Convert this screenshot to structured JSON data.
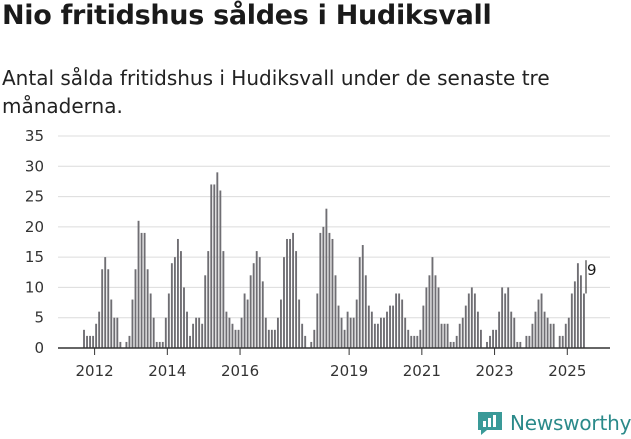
{
  "headline": "Nio fritidshus såldes i Hudiksvall",
  "subtitle": "Antal sålda fritidshus i Hudiksvall under de senaste tre månaderna.",
  "brand": {
    "name": "Newsworthy",
    "icon": "newsworthy-logo-icon",
    "color": "#2b8a8a"
  },
  "colors": {
    "bar": "#6f6e73",
    "highlight": "#1b9a94",
    "grid": "#dcdcdc",
    "axis": "#333333"
  },
  "chart_data": {
    "type": "bar",
    "title": "Nio fritidshus såldes i Hudiksvall",
    "xlabel": "",
    "ylabel": "",
    "ylim": [
      0,
      35
    ],
    "yticks": [
      "0",
      "5",
      "10",
      "15",
      "20",
      "25",
      "30",
      "35"
    ],
    "xticks": [
      {
        "label": "2012",
        "year": 2012
      },
      {
        "label": "2014",
        "year": 2014
      },
      {
        "label": "2016",
        "year": 2016
      },
      {
        "label": "2019",
        "year": 2019
      },
      {
        "label": "2021",
        "year": 2021
      },
      {
        "label": "2023",
        "year": 2023
      },
      {
        "label": "2025",
        "year": 2025
      }
    ],
    "start": "2011-09",
    "end": "2025-08",
    "values": [
      3,
      2,
      2,
      2,
      4,
      6,
      13,
      15,
      13,
      8,
      5,
      5,
      1,
      0,
      1,
      2,
      8,
      13,
      21,
      19,
      19,
      13,
      9,
      5,
      1,
      1,
      1,
      5,
      9,
      14,
      15,
      18,
      16,
      10,
      6,
      2,
      4,
      5,
      5,
      4,
      12,
      16,
      27,
      27,
      29,
      26,
      16,
      6,
      5,
      4,
      3,
      3,
      5,
      9,
      8,
      12,
      14,
      16,
      15,
      11,
      5,
      3,
      3,
      3,
      5,
      8,
      15,
      18,
      18,
      19,
      16,
      8,
      4,
      2,
      0,
      1,
      3,
      9,
      19,
      20,
      23,
      19,
      18,
      12,
      7,
      5,
      3,
      6,
      5,
      5,
      8,
      15,
      17,
      12,
      7,
      6,
      4,
      4,
      5,
      5,
      6,
      7,
      7,
      9,
      9,
      8,
      5,
      3,
      2,
      2,
      2,
      3,
      7,
      10,
      12,
      15,
      12,
      10,
      4,
      4,
      4,
      1,
      1,
      2,
      4,
      5,
      7,
      9,
      10,
      9,
      6,
      3,
      0,
      1,
      2,
      3,
      3,
      6,
      10,
      9,
      10,
      6,
      5,
      1,
      1,
      0,
      2,
      2,
      4,
      6,
      8,
      9,
      6,
      5,
      4,
      4,
      0,
      2,
      2,
      4,
      5,
      9,
      11,
      14,
      12,
      9
    ],
    "highlight_index": 167,
    "annotation": {
      "text": "9",
      "value": 9
    }
  }
}
